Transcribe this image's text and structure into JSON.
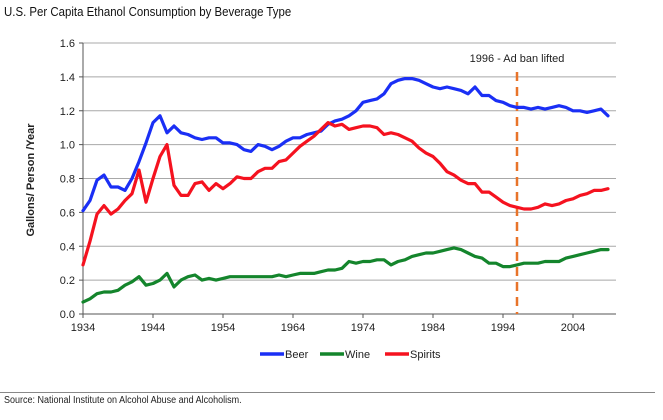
{
  "header": {
    "title_cropped": "",
    "subtitle": "U.S. Per Capita Ethanol Consumption by Beverage Type"
  },
  "footer": {
    "source": "Source: National Institute on Alcohol Abuse and Alcoholism."
  },
  "chart_data": {
    "type": "line",
    "title": "U.S. Per Capita Ethanol Consumption by Beverage Type",
    "xlabel": "",
    "ylabel": "Gallons/ Person /Year",
    "xlim": [
      1934,
      2010
    ],
    "ylim": [
      0,
      1.6
    ],
    "x_ticks": [
      1934,
      1944,
      1954,
      1964,
      1974,
      1984,
      1994,
      2004
    ],
    "y_ticks": [
      "0.0",
      "0.2",
      "0.4",
      "0.6",
      "0.8",
      "1.0",
      "1.2",
      "1.4",
      "1.6"
    ],
    "y_tick_values": [
      0,
      0.2,
      0.4,
      0.6,
      0.8,
      1.0,
      1.2,
      1.4,
      1.6
    ],
    "grid": "horizontal",
    "legend": "bottom",
    "annotation": {
      "x": 1996,
      "label": "1996 - Ad ban lifted",
      "color": "#e8742a",
      "style": "dashed"
    },
    "x": [
      1934,
      1935,
      1936,
      1937,
      1938,
      1939,
      1940,
      1941,
      1942,
      1943,
      1944,
      1945,
      1946,
      1947,
      1948,
      1949,
      1950,
      1951,
      1952,
      1953,
      1954,
      1955,
      1956,
      1957,
      1958,
      1959,
      1960,
      1961,
      1962,
      1963,
      1964,
      1965,
      1966,
      1967,
      1968,
      1969,
      1970,
      1971,
      1972,
      1973,
      1974,
      1975,
      1976,
      1977,
      1978,
      1979,
      1980,
      1981,
      1982,
      1983,
      1984,
      1985,
      1986,
      1987,
      1988,
      1989,
      1990,
      1991,
      1992,
      1993,
      1994,
      1995,
      1996,
      1997,
      1998,
      1999,
      2000,
      2001,
      2002,
      2003,
      2004,
      2005,
      2006,
      2007,
      2008,
      2009
    ],
    "series": [
      {
        "name": "Beer",
        "color": "#1a2ff5",
        "values": [
          0.61,
          0.67,
          0.79,
          0.82,
          0.75,
          0.75,
          0.73,
          0.8,
          0.9,
          1.01,
          1.13,
          1.17,
          1.07,
          1.11,
          1.07,
          1.06,
          1.04,
          1.03,
          1.04,
          1.04,
          1.01,
          1.01,
          1.0,
          0.97,
          0.96,
          1.0,
          0.99,
          0.97,
          0.99,
          1.02,
          1.04,
          1.04,
          1.06,
          1.07,
          1.08,
          1.12,
          1.14,
          1.15,
          1.17,
          1.2,
          1.25,
          1.26,
          1.27,
          1.3,
          1.36,
          1.38,
          1.39,
          1.39,
          1.38,
          1.36,
          1.34,
          1.33,
          1.34,
          1.33,
          1.32,
          1.3,
          1.34,
          1.29,
          1.29,
          1.26,
          1.25,
          1.23,
          1.22,
          1.22,
          1.21,
          1.22,
          1.21,
          1.22,
          1.23,
          1.22,
          1.2,
          1.2,
          1.19,
          1.2,
          1.21,
          1.17
        ]
      },
      {
        "name": "Wine",
        "color": "#14852c",
        "values": [
          0.07,
          0.09,
          0.12,
          0.13,
          0.13,
          0.14,
          0.17,
          0.19,
          0.22,
          0.17,
          0.18,
          0.2,
          0.24,
          0.16,
          0.2,
          0.22,
          0.23,
          0.2,
          0.21,
          0.2,
          0.21,
          0.22,
          0.22,
          0.22,
          0.22,
          0.22,
          0.22,
          0.22,
          0.23,
          0.22,
          0.23,
          0.24,
          0.24,
          0.24,
          0.25,
          0.26,
          0.26,
          0.27,
          0.31,
          0.3,
          0.31,
          0.31,
          0.32,
          0.32,
          0.29,
          0.31,
          0.32,
          0.34,
          0.35,
          0.36,
          0.36,
          0.37,
          0.38,
          0.39,
          0.38,
          0.36,
          0.34,
          0.33,
          0.3,
          0.3,
          0.28,
          0.28,
          0.29,
          0.3,
          0.3,
          0.3,
          0.31,
          0.31,
          0.31,
          0.33,
          0.34,
          0.35,
          0.36,
          0.37,
          0.38,
          0.38
        ]
      },
      {
        "name": "Spirits",
        "color": "#f5121f",
        "values": [
          0.29,
          0.43,
          0.59,
          0.64,
          0.59,
          0.62,
          0.67,
          0.71,
          0.85,
          0.66,
          0.8,
          0.93,
          1.0,
          0.76,
          0.7,
          0.7,
          0.77,
          0.78,
          0.73,
          0.77,
          0.74,
          0.77,
          0.81,
          0.8,
          0.8,
          0.84,
          0.86,
          0.86,
          0.9,
          0.91,
          0.95,
          0.99,
          1.02,
          1.05,
          1.09,
          1.13,
          1.11,
          1.12,
          1.09,
          1.1,
          1.11,
          1.11,
          1.1,
          1.06,
          1.07,
          1.06,
          1.04,
          1.02,
          0.98,
          0.95,
          0.93,
          0.89,
          0.84,
          0.82,
          0.79,
          0.77,
          0.77,
          0.72,
          0.72,
          0.69,
          0.66,
          0.64,
          0.63,
          0.62,
          0.62,
          0.63,
          0.65,
          0.64,
          0.65,
          0.67,
          0.68,
          0.7,
          0.71,
          0.73,
          0.73,
          0.74
        ]
      }
    ]
  }
}
